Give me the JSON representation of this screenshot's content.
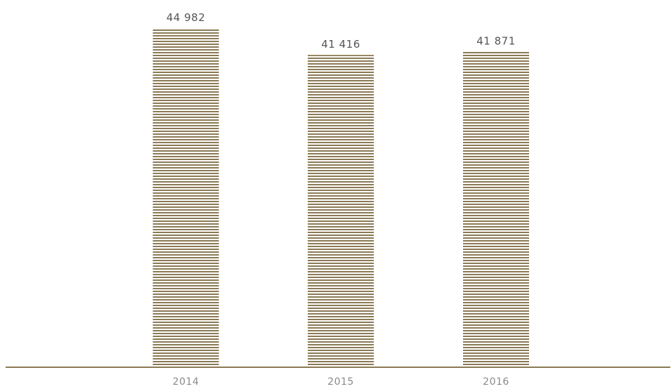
{
  "chart_data": {
    "type": "bar",
    "categories": [
      "2014",
      "2015",
      "2016"
    ],
    "values": [
      44982,
      41416,
      41871
    ],
    "value_labels": [
      "44 982",
      "41 416",
      "41 871"
    ],
    "title": "",
    "xlabel": "",
    "ylabel": "",
    "ylim": [
      0,
      44982
    ],
    "grid": false,
    "legend": "none",
    "bar_style": "horizontal-hatch",
    "colors": {
      "bar_stripe": "#8a7a55",
      "axis": "#8a7a55",
      "value_text": "#555555",
      "tick_text": "#8a8a8a"
    }
  }
}
